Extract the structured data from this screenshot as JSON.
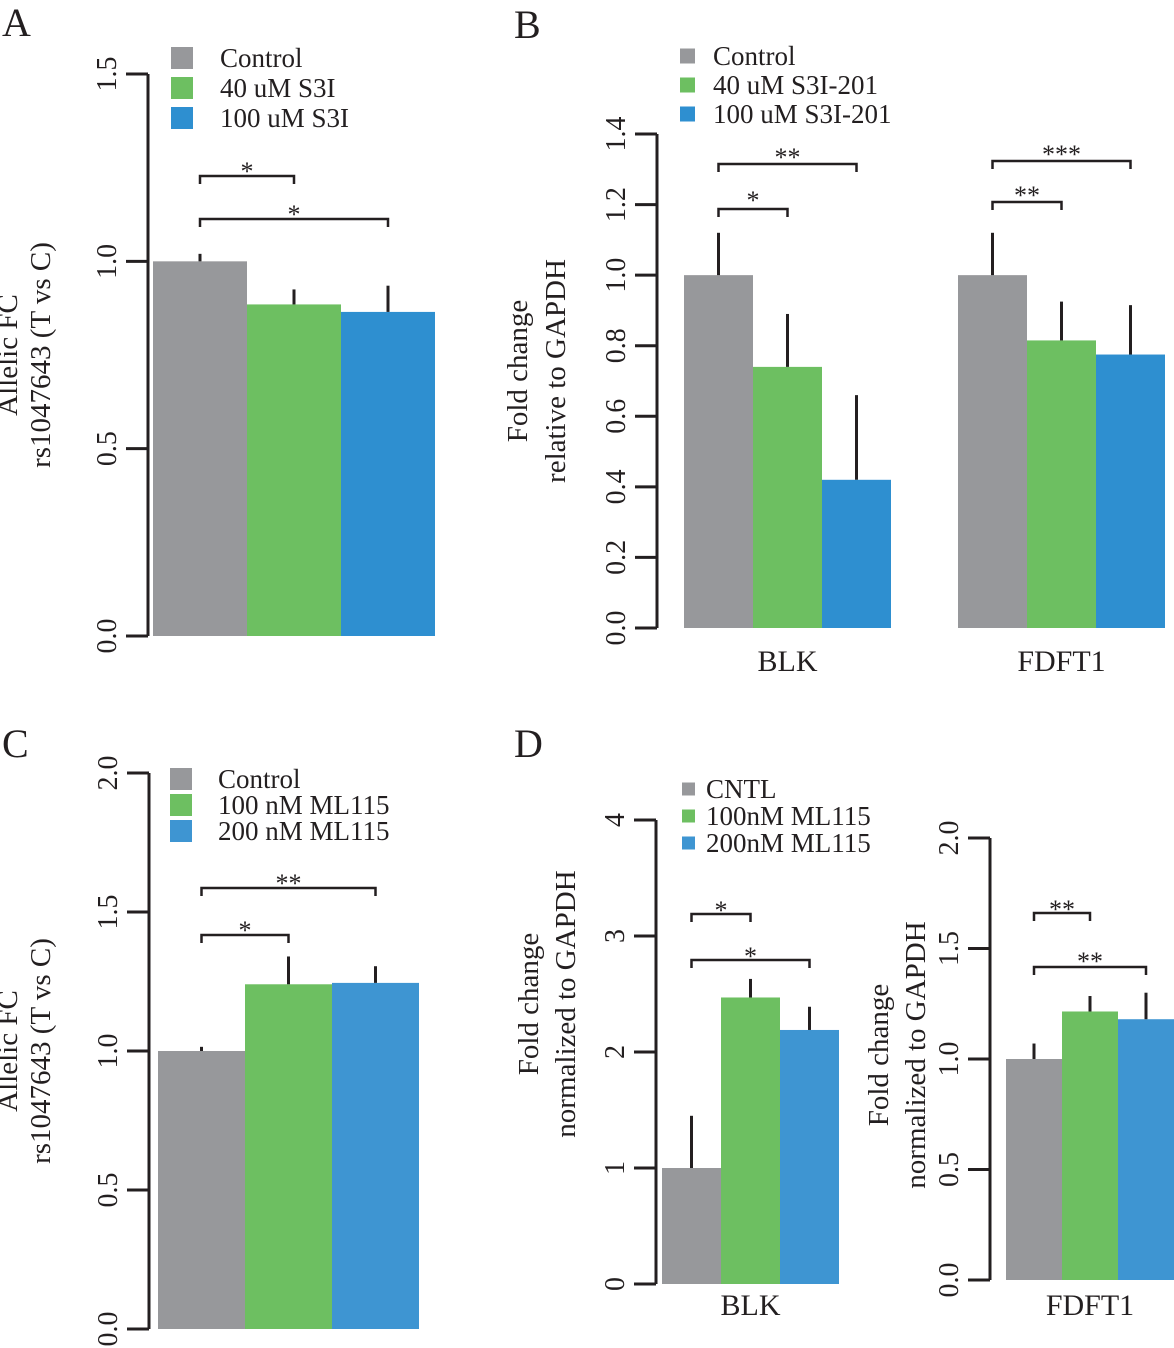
{
  "chart_data": [
    {
      "id": "A",
      "type": "bar",
      "panel_label": "A",
      "ylabel_lines": [
        "Allelic FC",
        "rs1047643 (T vs C)"
      ],
      "ylim": [
        0,
        1.5
      ],
      "yticks": [
        0.0,
        0.5,
        1.0,
        1.5
      ],
      "ytick_labels": [
        "0.0",
        "0.5",
        "1.0",
        "1.5"
      ],
      "groups": [
        {
          "label": "",
          "bars": [
            {
              "series": "Control",
              "value": 1.0,
              "error": 0.02
            },
            {
              "series": "40 uM S3I",
              "value": 0.885,
              "error": 0.04
            },
            {
              "series": "100 uM S3I",
              "value": 0.865,
              "error": 0.07
            }
          ],
          "significance": [
            {
              "from": 0,
              "to": 1,
              "label": "*"
            },
            {
              "from": 0,
              "to": 2,
              "label": "*"
            }
          ]
        }
      ],
      "legend": [
        {
          "label": "Control",
          "color": "#97989b"
        },
        {
          "label": "40 uM S3I",
          "color": "#6dbf61"
        },
        {
          "label": "100 uM S3I",
          "color": "#2e8fd0"
        }
      ]
    },
    {
      "id": "B",
      "type": "bar",
      "panel_label": "B",
      "ylabel_lines": [
        "Fold change",
        "relative to GAPDH"
      ],
      "ylim": [
        0,
        1.4
      ],
      "yticks": [
        0.0,
        0.2,
        0.4,
        0.6,
        0.8,
        1.0,
        1.2,
        1.4
      ],
      "ytick_labels": [
        "0.0",
        "0.2",
        "0.4",
        "0.6",
        "0.8",
        "1.0",
        "1.2",
        "1.4"
      ],
      "groups": [
        {
          "label": "BLK",
          "bars": [
            {
              "series": "Control",
              "value": 1.0,
              "error": 0.12
            },
            {
              "series": "40 uM S3I-201",
              "value": 0.74,
              "error": 0.15
            },
            {
              "series": "100 uM S3I-201",
              "value": 0.42,
              "error": 0.24
            }
          ],
          "significance": [
            {
              "from": 0,
              "to": 1,
              "label": "*"
            },
            {
              "from": 0,
              "to": 2,
              "label": "**"
            }
          ]
        },
        {
          "label": "FDFT1",
          "bars": [
            {
              "series": "Control",
              "value": 1.0,
              "error": 0.12
            },
            {
              "series": "40 uM S3I-201",
              "value": 0.815,
              "error": 0.11
            },
            {
              "series": "100 uM S3I-201",
              "value": 0.775,
              "error": 0.14
            }
          ],
          "significance": [
            {
              "from": 0,
              "to": 1,
              "label": "**"
            },
            {
              "from": 0,
              "to": 2,
              "label": "***"
            }
          ]
        }
      ],
      "legend": [
        {
          "label": "Control",
          "color": "#97989b"
        },
        {
          "label": "40 uM S3I-201",
          "color": "#6dbf61"
        },
        {
          "label": "100 uM S3I-201",
          "color": "#2e8fd0"
        }
      ]
    },
    {
      "id": "C",
      "type": "bar",
      "panel_label": "C",
      "ylabel_lines": [
        "Allelic FC",
        "rs1047643 (T vs C)"
      ],
      "ylim": [
        0,
        2.0
      ],
      "yticks": [
        0.0,
        0.5,
        1.0,
        1.5,
        2.0
      ],
      "ytick_labels": [
        "0.0",
        "0.5",
        "1.0",
        "1.5",
        "2.0"
      ],
      "groups": [
        {
          "label": "",
          "bars": [
            {
              "series": "Control",
              "value": 1.0,
              "error": 0.015
            },
            {
              "series": "100 nM ML115",
              "value": 1.24,
              "error": 0.1
            },
            {
              "series": "200 nM ML115",
              "value": 1.245,
              "error": 0.06
            }
          ],
          "significance": [
            {
              "from": 0,
              "to": 1,
              "label": "*"
            },
            {
              "from": 0,
              "to": 2,
              "label": "**"
            }
          ]
        }
      ],
      "legend": [
        {
          "label": "Control",
          "color": "#97989b"
        },
        {
          "label": "100 nM ML115",
          "color": "#6dbf61"
        },
        {
          "label": "200 nM ML115",
          "color": "#3e95d2"
        }
      ]
    },
    {
      "id": "D1",
      "type": "bar",
      "panel_label": "D",
      "ylabel_lines": [
        "Fold change",
        "normalized to GAPDH"
      ],
      "ylim": [
        0,
        4
      ],
      "yticks": [
        0,
        1,
        2,
        3,
        4
      ],
      "ytick_labels": [
        "0",
        "1",
        "2",
        "3",
        "4"
      ],
      "groups": [
        {
          "label": "BLK",
          "bars": [
            {
              "series": "CNTL",
              "value": 1.0,
              "error": 0.45
            },
            {
              "series": "100nM ML115",
              "value": 2.47,
              "error": 0.16
            },
            {
              "series": "200nM ML115",
              "value": 2.19,
              "error": 0.2
            }
          ],
          "significance": [
            {
              "from": 0,
              "to": 1,
              "label": "*"
            },
            {
              "from": 0,
              "to": 2,
              "label": "*"
            }
          ]
        }
      ],
      "legend": [
        {
          "label": "CNTL",
          "color": "#97989b"
        },
        {
          "label": "100nM ML115",
          "color": "#6dbf61"
        },
        {
          "label": "200nM ML115",
          "color": "#3e95d2"
        }
      ]
    },
    {
      "id": "D2",
      "type": "bar",
      "panel_label": "",
      "ylabel_lines": [
        "Fold change",
        "normalized to GAPDH"
      ],
      "ylim": [
        0,
        2.0
      ],
      "yticks": [
        0.0,
        0.5,
        1.0,
        1.5,
        2.0
      ],
      "ytick_labels": [
        "0.0",
        "0.5",
        "1.0",
        "1.5",
        "2.0"
      ],
      "groups": [
        {
          "label": "FDFT1",
          "bars": [
            {
              "series": "CNTL",
              "value": 1.0,
              "error": 0.07
            },
            {
              "series": "100nM ML115",
              "value": 1.215,
              "error": 0.07
            },
            {
              "series": "200nM ML115",
              "value": 1.18,
              "error": 0.12
            }
          ],
          "significance": [
            {
              "from": 0,
              "to": 1,
              "label": "**"
            },
            {
              "from": 0,
              "to": 2,
              "label": "**"
            }
          ]
        }
      ],
      "legend": []
    }
  ]
}
